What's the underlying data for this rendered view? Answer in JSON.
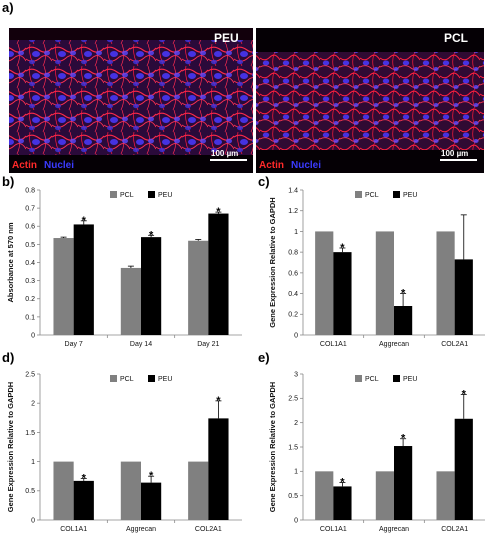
{
  "panel_a": {
    "letter": "a)",
    "images": [
      {
        "label": "PEU",
        "stain_actin": "Actin",
        "stain_nuclei": "Nuclei",
        "scale": "100 µm"
      },
      {
        "label": "PCL",
        "stain_actin": "Actin",
        "stain_nuclei": "Nuclei",
        "scale": "100 µm"
      }
    ]
  },
  "colors": {
    "PCL": "#808080",
    "PEU": "#000000",
    "actin": "#ff2a2a",
    "nuclei": "#3b3bff"
  },
  "chart_data": [
    {
      "panel": "b)",
      "type": "bar",
      "ylabel": "Absorbance at 570 nm",
      "ylim": [
        0,
        0.8
      ],
      "yticks": [
        "0",
        "0.1",
        "0.2",
        "0.3",
        "0.4",
        "0.5",
        "0.6",
        "0.7",
        "0.8"
      ],
      "grid": false,
      "legend": "top",
      "categories": [
        "Day 7",
        "Day 14",
        "Day 21"
      ],
      "series": [
        {
          "name": "PCL",
          "values": [
            0.535,
            0.37,
            0.52
          ],
          "errors": [
            0.005,
            0.01,
            0.007
          ],
          "stars": [
            false,
            false,
            false
          ]
        },
        {
          "name": "PEU",
          "values": [
            0.61,
            0.54,
            0.67
          ],
          "errors": [
            0.02,
            0.01,
            0.008
          ],
          "stars": [
            true,
            true,
            true
          ]
        }
      ]
    },
    {
      "panel": "c)",
      "type": "bar",
      "ylabel": "Gene Expression Relative to GAPDH",
      "ylim": [
        0,
        1.4
      ],
      "yticks": [
        "0",
        "0.2",
        "0.4",
        "0.6",
        "0.8",
        "1",
        "1.2",
        "1.4"
      ],
      "grid": false,
      "legend": "top",
      "categories": [
        "COL1A1",
        "Aggrecan",
        "COL2A1"
      ],
      "series": [
        {
          "name": "PCL",
          "values": [
            1,
            1,
            1
          ],
          "errors": [
            0,
            0,
            0
          ],
          "stars": [
            false,
            false,
            false
          ]
        },
        {
          "name": "PEU",
          "values": [
            0.8,
            0.28,
            0.73
          ],
          "errors": [
            0.04,
            0.12,
            0.43
          ],
          "stars": [
            true,
            true,
            false
          ]
        }
      ]
    },
    {
      "panel": "d)",
      "type": "bar",
      "ylabel": "Gene Expression Relative to GAPDH",
      "ylim": [
        0,
        2.5
      ],
      "yticks": [
        "0",
        "0.5",
        "1",
        "1.5",
        "2",
        "2.5"
      ],
      "grid": false,
      "legend": "top",
      "categories": [
        "COL1A1",
        "Aggrecan",
        "COL2A1"
      ],
      "series": [
        {
          "name": "PCL",
          "values": [
            1,
            1,
            1
          ],
          "errors": [
            0,
            0,
            0
          ],
          "stars": [
            false,
            false,
            false
          ]
        },
        {
          "name": "PEU",
          "values": [
            0.67,
            0.64,
            1.74
          ],
          "errors": [
            0.04,
            0.11,
            0.3
          ],
          "stars": [
            true,
            true,
            true
          ]
        }
      ]
    },
    {
      "panel": "e)",
      "type": "bar",
      "ylabel": "Gene Expression Relative to GAPDH",
      "ylim": [
        0,
        3
      ],
      "yticks": [
        "0",
        "0.5",
        "1",
        "1.5",
        "2",
        "2.5",
        "3"
      ],
      "grid": false,
      "legend": "top",
      "categories": [
        "COL1A1",
        "Aggrecan",
        "COL2A1"
      ],
      "series": [
        {
          "name": "PCL",
          "values": [
            1,
            1,
            1
          ],
          "errors": [
            0,
            0,
            0
          ],
          "stars": [
            false,
            false,
            false
          ]
        },
        {
          "name": "PEU",
          "values": [
            0.69,
            1.52,
            2.08
          ],
          "errors": [
            0.08,
            0.15,
            0.5
          ],
          "stars": [
            true,
            true,
            true
          ]
        }
      ]
    }
  ]
}
